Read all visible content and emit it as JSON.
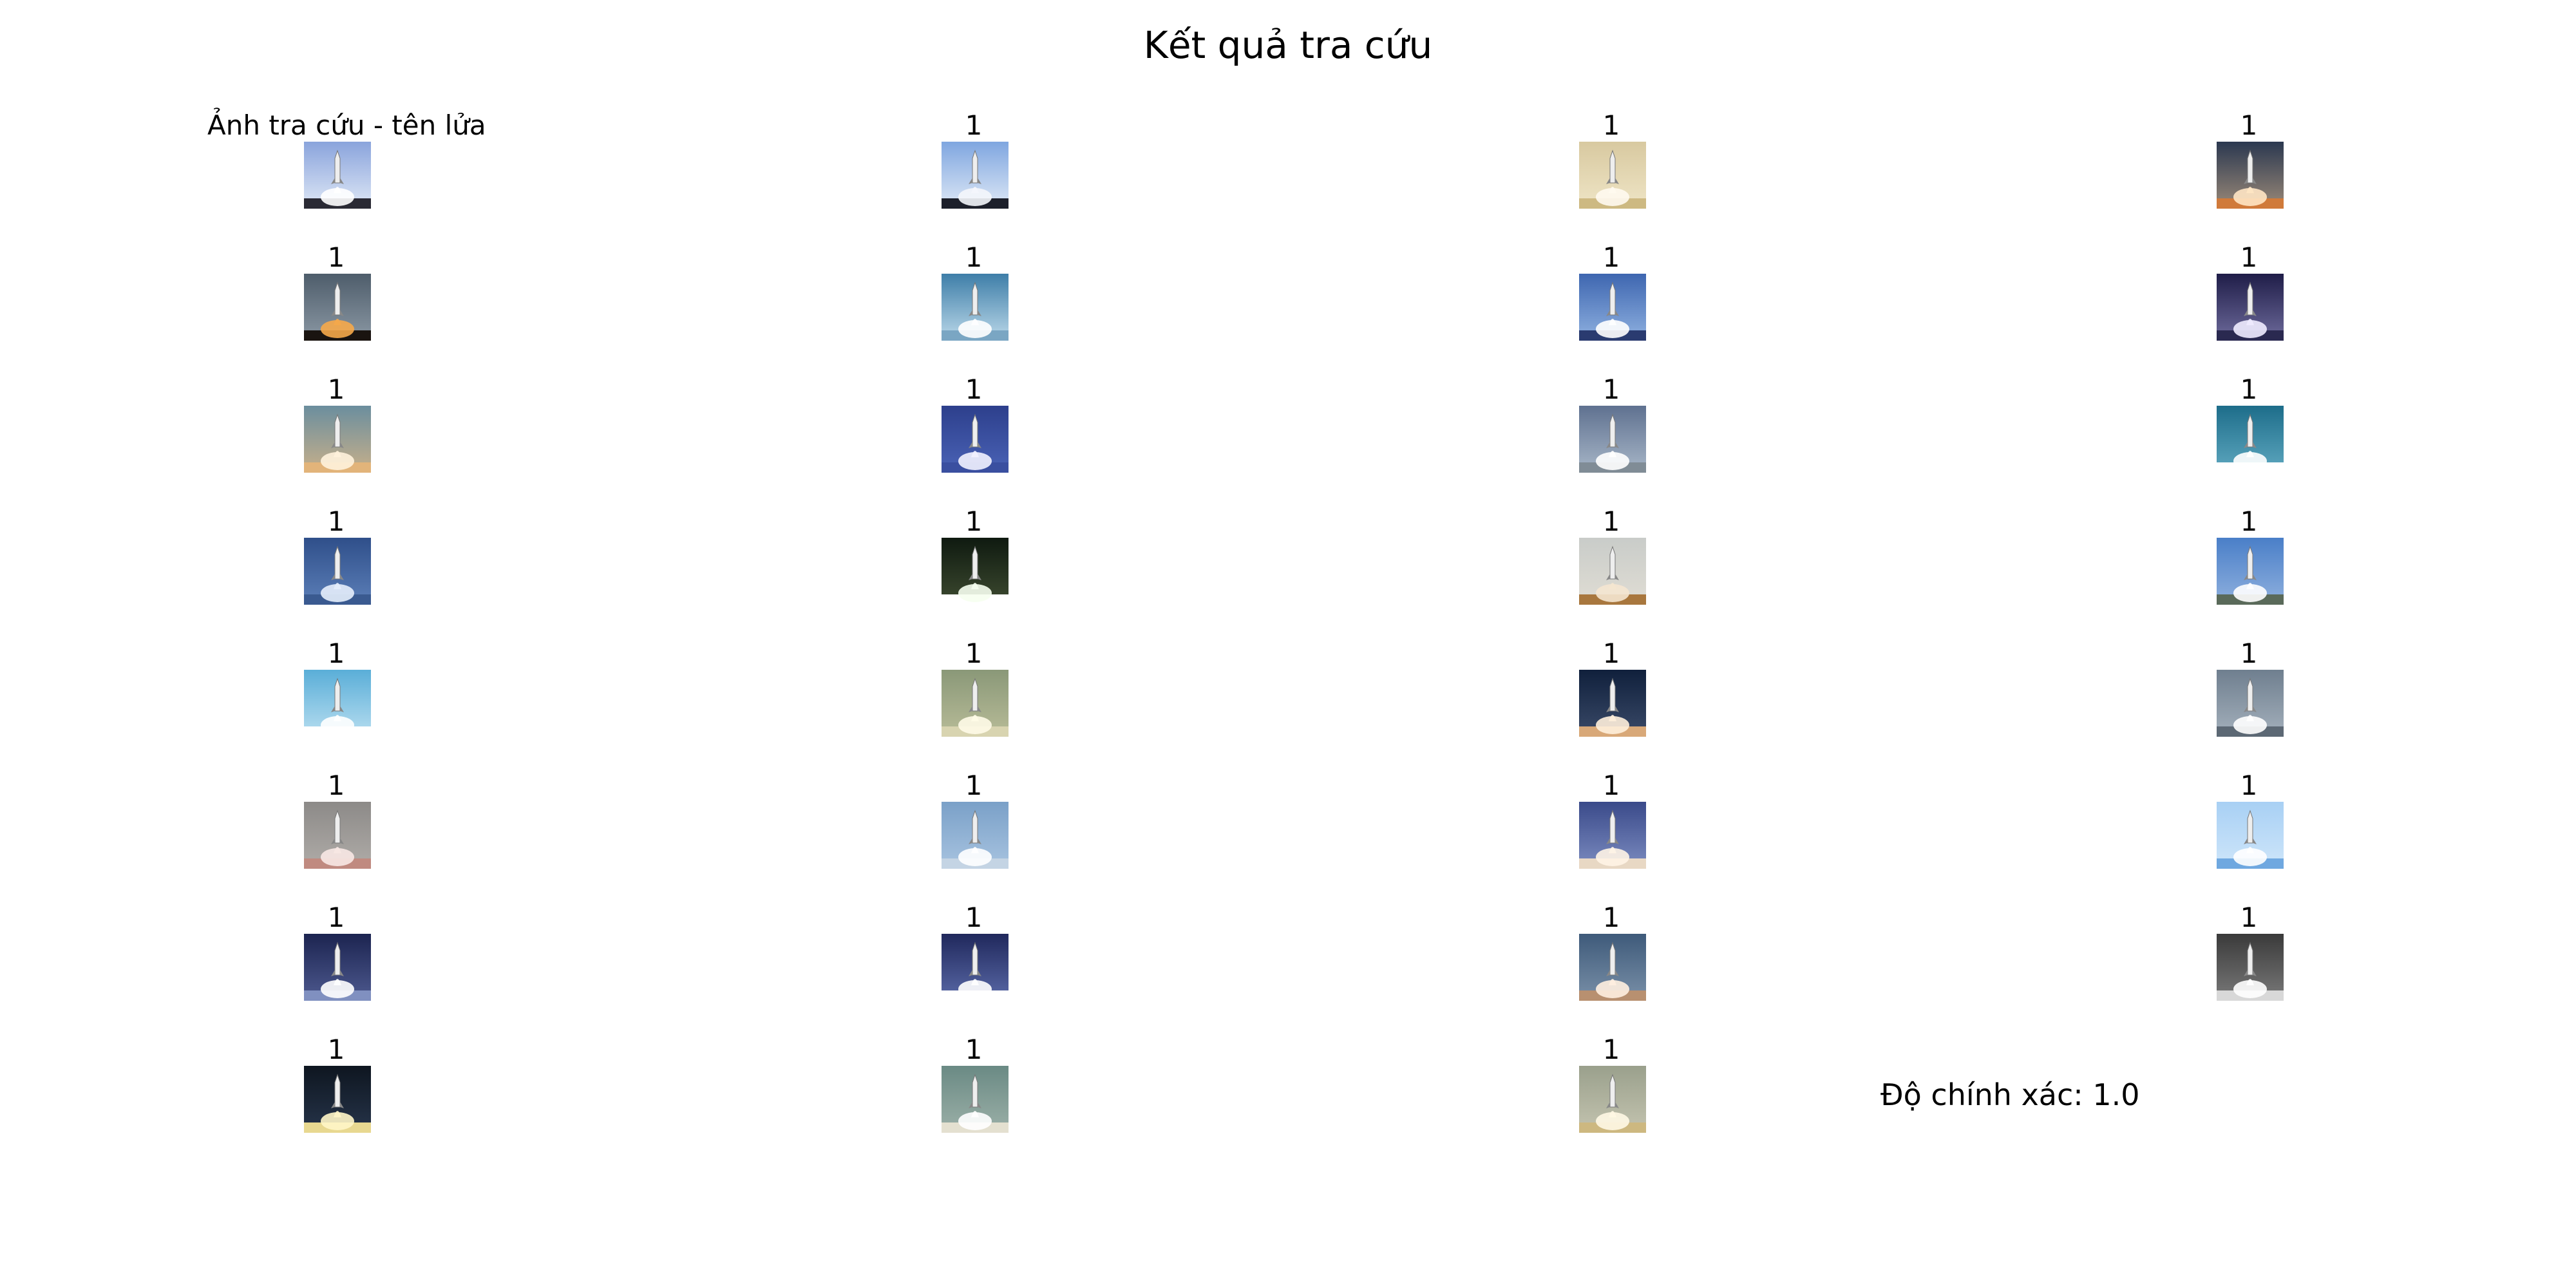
{
  "title": "Kết quả tra cứu",
  "query_label": "Ảnh tra cứu - tên lửa",
  "accuracy_text": "Độ chính xác: 1.0",
  "results": [
    {
      "label": "1",
      "sky_top": "#7fa6e0",
      "sky_bottom": "#dfe9f6",
      "ground": "#1c1f2a",
      "plume": "#f4f6fb"
    },
    {
      "label": "1",
      "sky_top": "#d8c9a0",
      "sky_bottom": "#efe5c6",
      "ground": "#cdb982",
      "plume": "#fffaf0"
    },
    {
      "label": "1",
      "sky_top": "#2b3850",
      "sky_bottom": "#9b8a78",
      "ground": "#d07a3a",
      "plume": "#ffe6c4"
    },
    {
      "label": "1",
      "sky_top": "#4e5d6b",
      "sky_bottom": "#8b98a4",
      "ground": "#1a1410",
      "plume": "#f6a84a"
    },
    {
      "label": "1",
      "sky_top": "#3e7ea8",
      "sky_bottom": "#bcd9ea",
      "ground": "#7aa6c3",
      "plume": "#ffffff"
    },
    {
      "label": "1",
      "sky_top": "#3e66b0",
      "sky_bottom": "#8fb1e0",
      "ground": "#2a3b70",
      "plume": "#ffffff"
    },
    {
      "label": "1",
      "sky_top": "#1f1d48",
      "sky_bottom": "#6e6b9c",
      "ground": "#2a2950",
      "plume": "#f0ecff"
    },
    {
      "label": "1",
      "sky_top": "#6b8e9e",
      "sky_bottom": "#c8b08a",
      "ground": "#e2b47a",
      "plume": "#fff2dc"
    },
    {
      "label": "1",
      "sky_top": "#2d3f8c",
      "sky_bottom": "#4a63b6",
      "ground": "#3a4fa0",
      "plume": "#f2f2ff"
    },
    {
      "label": "1",
      "sky_top": "#5f7190",
      "sky_bottom": "#a8b7c8",
      "ground": "#808c96",
      "plume": "#ffffff"
    },
    {
      "label": "1",
      "sky_top": "#1d6d8a",
      "sky_bottom": "#5fa8c0",
      "ground": "#ffffff",
      "plume": "#ffffff"
    },
    {
      "label": "1",
      "sky_top": "#2f4f8a",
      "sky_bottom": "#5c7fb8",
      "ground": "#3a5a90",
      "plume": "#e6eefc"
    },
    {
      "label": "1",
      "sky_top": "#0f1a10",
      "sky_bottom": "#3d4a30",
      "ground": "#ffffff",
      "plume": "#f6fff0"
    },
    {
      "label": "1",
      "sky_top": "#c9ccc9",
      "sky_bottom": "#e0ddd4",
      "ground": "#a8773e",
      "plume": "#f4e6d0"
    },
    {
      "label": "1",
      "sky_top": "#4a7fc8",
      "sky_bottom": "#8fb0de",
      "ground": "#5a6a5a",
      "plume": "#ffffff"
    },
    {
      "label": "1",
      "sky_top": "#5aaed8",
      "sky_bottom": "#b8def0",
      "ground": "#ffffff",
      "plume": "#ffffff"
    },
    {
      "label": "1",
      "sky_top": "#8a9878",
      "sky_bottom": "#b8bc98",
      "ground": "#d8d4b0",
      "plume": "#fffbe8"
    },
    {
      "label": "1",
      "sky_top": "#10203c",
      "sky_bottom": "#3a4a68",
      "ground": "#d8a878",
      "plume": "#fff0dc"
    },
    {
      "label": "1",
      "sky_top": "#6f7f8f",
      "sky_bottom": "#a4b0bc",
      "ground": "#5c6874",
      "plume": "#ffffff"
    },
    {
      "label": "1",
      "sky_top": "#8c8a88",
      "sky_bottom": "#b0aca8",
      "ground": "#c08a80",
      "plume": "#f8e8e4"
    },
    {
      "label": "1",
      "sky_top": "#7aa0c8",
      "sky_bottom": "#a8c4e0",
      "ground": "#c4d4e4",
      "plume": "#ffffff"
    },
    {
      "label": "1",
      "sky_top": "#3a4a8a",
      "sky_bottom": "#7c8cc0",
      "ground": "#e8d8c4",
      "plume": "#fff4e6"
    },
    {
      "label": "1",
      "sky_top": "#a8d0f4",
      "sky_bottom": "#cfe6fa",
      "ground": "#6fa8e0",
      "plume": "#ffffff"
    },
    {
      "label": "1",
      "sky_top": "#1c2450",
      "sky_bottom": "#4e5a90",
      "ground": "#8090c0",
      "plume": "#ffffff"
    },
    {
      "label": "1",
      "sky_top": "#20285c",
      "sky_bottom": "#5a6aa8",
      "ground": "#ffffff",
      "plume": "#ffffff"
    },
    {
      "label": "1",
      "sky_top": "#3e5a7a",
      "sky_bottom": "#7a90a8",
      "ground": "#b89070",
      "plume": "#fff0e0"
    },
    {
      "label": "1",
      "sky_top": "#3a3a3a",
      "sky_bottom": "#7a7a7a",
      "ground": "#d8d8d8",
      "plume": "#ffffff"
    },
    {
      "label": "1",
      "sky_top": "#0e1620",
      "sky_bottom": "#26344a",
      "ground": "#e8d890",
      "plume": "#fff6c8"
    },
    {
      "label": "1",
      "sky_top": "#6a8a84",
      "sky_bottom": "#9cb0a8",
      "ground": "#e4e0d0",
      "plume": "#ffffff"
    },
    {
      "label": "1",
      "sky_top": "#9aa08c",
      "sky_bottom": "#c4c4b0",
      "ground": "#cdb880",
      "plume": "#fff8e4"
    }
  ],
  "query_image": {
    "sky_top": "#8aa4dc",
    "sky_bottom": "#dfe8f6",
    "ground": "#2a2a34",
    "plume": "#ffffff"
  }
}
